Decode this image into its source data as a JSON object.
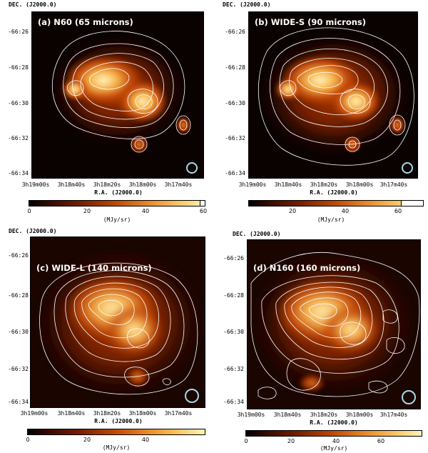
{
  "dec_title": "DEC. (J2000.0)",
  "ra_title": "R.A. (J2000.0)",
  "dec_ticks": [
    "-66:26",
    "-66:28",
    "-66:30",
    "-66:32",
    "-66:34"
  ],
  "ra_ticks": [
    "3h19m00s",
    "3h18m40s",
    "3h18m20s",
    "3h18m00s",
    "3h17m40s"
  ],
  "unit": "(MJy/sr)",
  "colormap": {
    "low": "#000000",
    "mid": "#c24a05",
    "high": "#fff4b8",
    "contour": "#ffffff"
  },
  "panels": [
    {
      "label": "(a) N60 (65 microns)",
      "colorbar_ticks": [
        "0",
        "20",
        "40",
        "60"
      ]
    },
    {
      "label": "(b) WIDE-S (90 microns)",
      "colorbar_ticks": [
        "20",
        "40",
        "60"
      ]
    },
    {
      "label": "(c) WIDE-L (140 microns)",
      "colorbar_ticks": [
        "0",
        "20",
        "40"
      ]
    },
    {
      "label": "(d) N160 (160 microns)",
      "colorbar_ticks": [
        "0",
        "20",
        "40",
        "60"
      ]
    }
  ]
}
